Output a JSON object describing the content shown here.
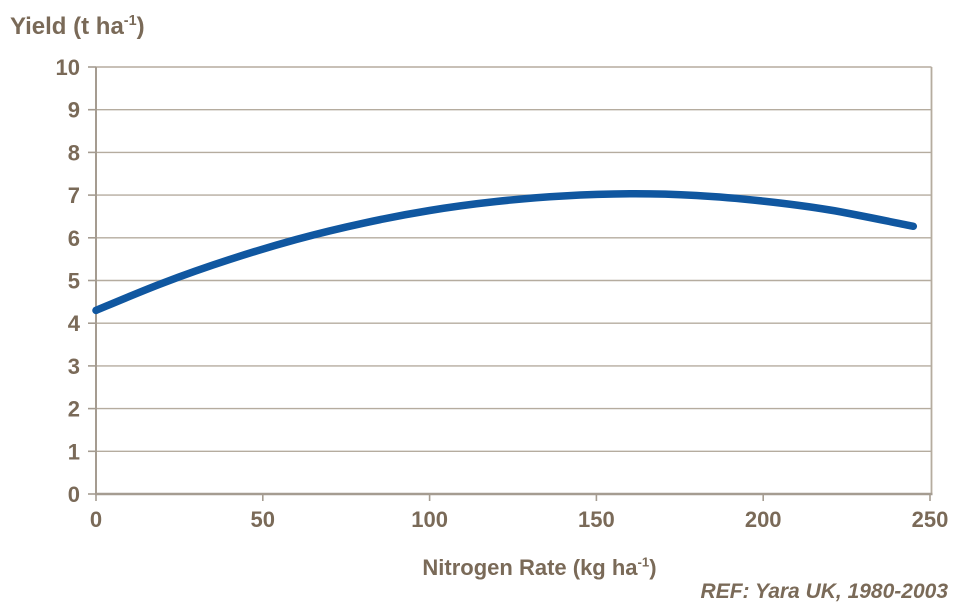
{
  "chart_data": {
    "type": "line",
    "title_parts": {
      "text": "Yield (t ha",
      "sup": "-1",
      "close": ")"
    },
    "xlabel_parts": {
      "text": "Nitrogen Rate (kg ha",
      "sup": "-1",
      "close": ")"
    },
    "title": "Yield (t ha-1)",
    "xlabel": "Nitrogen Rate (kg ha-1)",
    "ref_note": "REF: Yara UK, 1980-2003",
    "x": [
      0,
      20,
      40,
      60,
      80,
      100,
      120,
      140,
      160,
      180,
      200,
      220,
      245
    ],
    "y": [
      4.3,
      4.94,
      5.49,
      5.96,
      6.34,
      6.64,
      6.85,
      6.98,
      7.03,
      6.99,
      6.86,
      6.65,
      6.27
    ],
    "xlim": [
      0,
      250
    ],
    "ylim": [
      0,
      10
    ],
    "x_ticks": [
      0,
      50,
      100,
      150,
      200,
      250
    ],
    "y_ticks": [
      0,
      1,
      2,
      3,
      4,
      5,
      6,
      7,
      8,
      9,
      10
    ],
    "grid": "horizontal-only",
    "legend": "none",
    "colors": {
      "line": "#1057a0",
      "axis": "#a59c91",
      "grid": "#b5ac9f",
      "text": "#7a6a58",
      "background": "#ffffff"
    }
  }
}
